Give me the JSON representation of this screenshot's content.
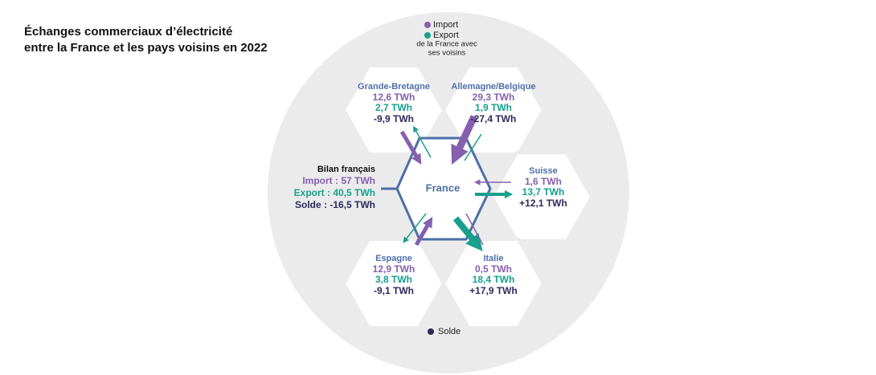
{
  "title": [
    "Échanges commerciaux d’électricité",
    "entre la France et les pays voisins en 2022"
  ],
  "legend": {
    "import": "Import",
    "export": "Export",
    "note": [
      "de la France avec",
      "ses voisins"
    ],
    "solde": "Solde"
  },
  "center": "France",
  "bilan": {
    "title": "Bilan français",
    "import": "Import : 57 TWh",
    "export": "Export : 40,5 TWh",
    "solde": "Solde : -16,5 TWh"
  },
  "neighbors": [
    {
      "name": "Grande-Bretagne",
      "import": "12,6 TWh",
      "export": "2,7 TWh",
      "solde": "-9,9 TWh"
    },
    {
      "name": "Allemagne/Belgique",
      "import": "29,3 TWh",
      "export": "1,9 TWh",
      "solde": "-27,4 TWh"
    },
    {
      "name": "Suisse",
      "import": "1,6 TWh",
      "export": "13,7 TWh",
      "solde": "+12,1 TWh"
    },
    {
      "name": "Italie",
      "import": "0,5 TWh",
      "export": "18,4 TWh",
      "solde": "+17,9 TWh"
    },
    {
      "name": "Espagne",
      "import": "12,9 TWh",
      "export": "3,8 TWh",
      "solde": "-9,1 TWh"
    }
  ]
}
